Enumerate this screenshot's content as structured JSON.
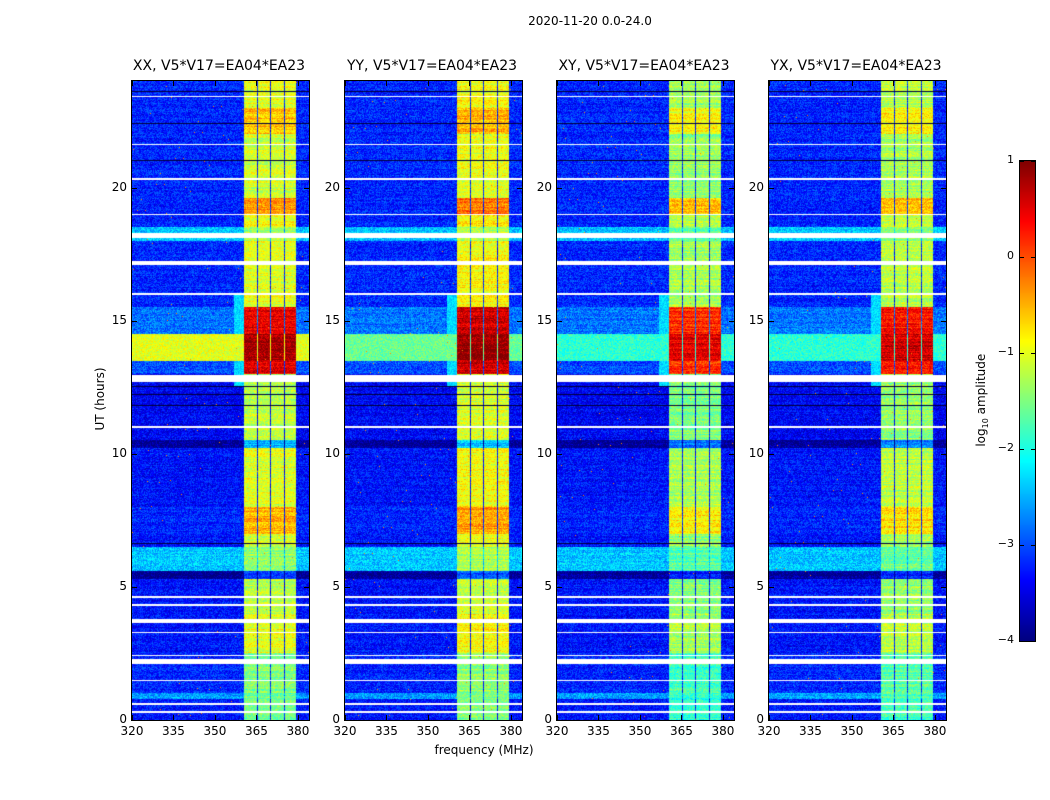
{
  "chart_data": {
    "type": "heatmap",
    "title": "2020-11-20 0.0-24.0",
    "xlabel": "frequency (MHz)",
    "ylabel": "UT (hours)",
    "xlim": [
      320,
      384
    ],
    "ylim": [
      0,
      24
    ],
    "xticks": [
      320,
      335,
      350,
      365,
      380
    ],
    "yticks": [
      0,
      5,
      10,
      15,
      20
    ],
    "colormap": "jet",
    "colorbar": {
      "label": "log10 amplitude",
      "label_main": "log",
      "label_sub": "10",
      "label_rest": " amplitude",
      "range": [
        -4,
        1
      ],
      "ticks": [
        1,
        0,
        -1,
        -2,
        -3,
        -4
      ],
      "tick_labels": [
        "1",
        "0",
        "−1",
        "−2",
        "−3",
        "−4"
      ]
    },
    "panels": [
      {
        "title": "XX, V5*V17=EA04*EA23",
        "band_offset": 0,
        "broadband_rfi": 0.4
      },
      {
        "title": "YY, V5*V17=EA04*EA23",
        "band_offset": 0.1,
        "broadband_rfi": 0.2
      },
      {
        "title": "XY, V5*V17=EA04*EA23",
        "band_offset": -0.3,
        "broadband_rfi": 0.1
      },
      {
        "title": "YX, V5*V17=EA04*EA23",
        "band_offset": -0.2,
        "broadband_rfi": 0.1
      }
    ],
    "rfi_subbands_mhz": [
      [
        360.4,
        365.1
      ],
      [
        365.6,
        369.9
      ],
      [
        370.4,
        374.8
      ],
      [
        375.3,
        379.3
      ]
    ],
    "time_segments": [
      {
        "t": [
          0,
          0.8
        ],
        "background": -3.3,
        "band": -1.6
      },
      {
        "t": [
          0.8,
          1.0
        ],
        "background": -2.6,
        "band": -1.6
      },
      {
        "t": [
          1.0,
          2.5
        ],
        "background": -3.2,
        "band": -1.5
      },
      {
        "t": [
          2.5,
          4.0
        ],
        "background": -3.3,
        "band": -1.0
      },
      {
        "t": [
          4.0,
          5.3
        ],
        "background": -3.3,
        "band": -1.2
      },
      {
        "t": [
          5.3,
          5.6
        ],
        "background": -3.9,
        "band": -3.0
      },
      {
        "t": [
          5.6,
          6.5
        ],
        "background": -2.4,
        "band": -1.4
      },
      {
        "t": [
          6.5,
          7.0
        ],
        "background": -3.3,
        "band": -1.1
      },
      {
        "t": [
          7.0,
          8.0
        ],
        "background": -3.2,
        "band": -0.5
      },
      {
        "t": [
          8.0,
          10.2
        ],
        "background": -3.3,
        "band": -1.0
      },
      {
        "t": [
          10.2,
          10.5
        ],
        "background": -3.9,
        "band": -2.5
      },
      {
        "t": [
          10.5,
          13.0
        ],
        "background": -3.4,
        "band": -1.2
      },
      {
        "t": [
          13.0,
          13.5
        ],
        "background": -3.0,
        "band": 0.5
      },
      {
        "t": [
          13.5,
          14.5
        ],
        "background": -1.0,
        "band": 0.8
      },
      {
        "t": [
          14.5,
          15.5
        ],
        "background": -2.8,
        "band": 0.5
      },
      {
        "t": [
          15.5,
          18.0
        ],
        "background": -3.2,
        "band": -1.0
      },
      {
        "t": [
          18.0,
          18.5
        ],
        "background": -2.4,
        "band": -1.3
      },
      {
        "t": [
          18.5,
          19.0
        ],
        "background": -3.2,
        "band": -0.9
      },
      {
        "t": [
          19.0,
          19.6
        ],
        "background": -3.2,
        "band": -0.3
      },
      {
        "t": [
          19.6,
          22.0
        ],
        "background": -3.2,
        "band": -1.1
      },
      {
        "t": [
          22.0,
          23.0
        ],
        "background": -3.2,
        "band": -0.6
      },
      {
        "t": [
          23.0,
          24.0
        ],
        "background": -3.2,
        "band": -1.0
      }
    ],
    "flagged_times_h": [
      [
        0.25,
        0.32
      ],
      [
        0.55,
        0.62
      ],
      [
        1.45,
        1.52
      ],
      [
        2.1,
        2.3
      ],
      [
        2.4,
        2.45
      ],
      [
        3.25,
        3.32
      ],
      [
        3.65,
        3.8
      ],
      [
        4.3,
        4.35
      ],
      [
        4.6,
        4.65
      ],
      [
        10.95,
        11.05
      ],
      [
        12.7,
        12.95
      ],
      [
        15.95,
        16.02
      ],
      [
        17.1,
        17.25
      ],
      [
        18.1,
        18.3
      ],
      [
        18.95,
        19.0
      ],
      [
        20.3,
        20.35
      ],
      [
        21.6,
        21.65
      ],
      [
        23.4,
        23.45
      ]
    ],
    "dark_rows_h": [
      [
        6.6,
        6.65
      ],
      [
        11.8,
        11.84
      ],
      [
        12.2,
        12.24
      ],
      [
        12.5,
        12.54
      ],
      [
        21.0,
        21.04
      ],
      [
        22.4,
        22.44
      ],
      [
        23.6,
        23.64
      ]
    ]
  }
}
